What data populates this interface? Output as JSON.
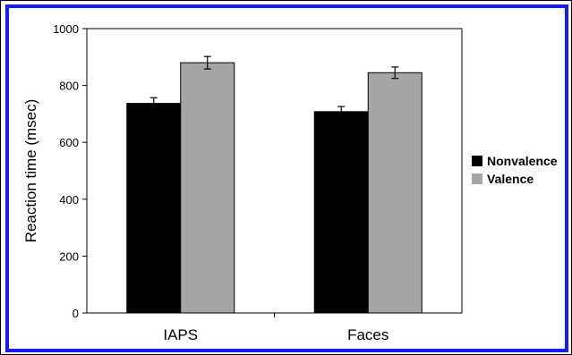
{
  "frame_colors": {
    "outer": "#000000",
    "inner": "#1a1aff"
  },
  "chart_data": {
    "type": "bar",
    "categories": [
      "IAPS",
      "Faces"
    ],
    "series": [
      {
        "name": "Nonvalence",
        "values": [
          737,
          708
        ],
        "errors": [
          20,
          18
        ],
        "color": "#000000"
      },
      {
        "name": "Valence",
        "values": [
          880,
          845
        ],
        "errors": [
          22,
          20
        ],
        "color": "#a6a6a6"
      }
    ],
    "ylabel": "Reaction time (msec)",
    "xlabel": "",
    "ylim": [
      0,
      1000
    ],
    "yticks": [
      0,
      200,
      400,
      600,
      800,
      1000
    ],
    "legend_position": "right",
    "grid": false
  }
}
